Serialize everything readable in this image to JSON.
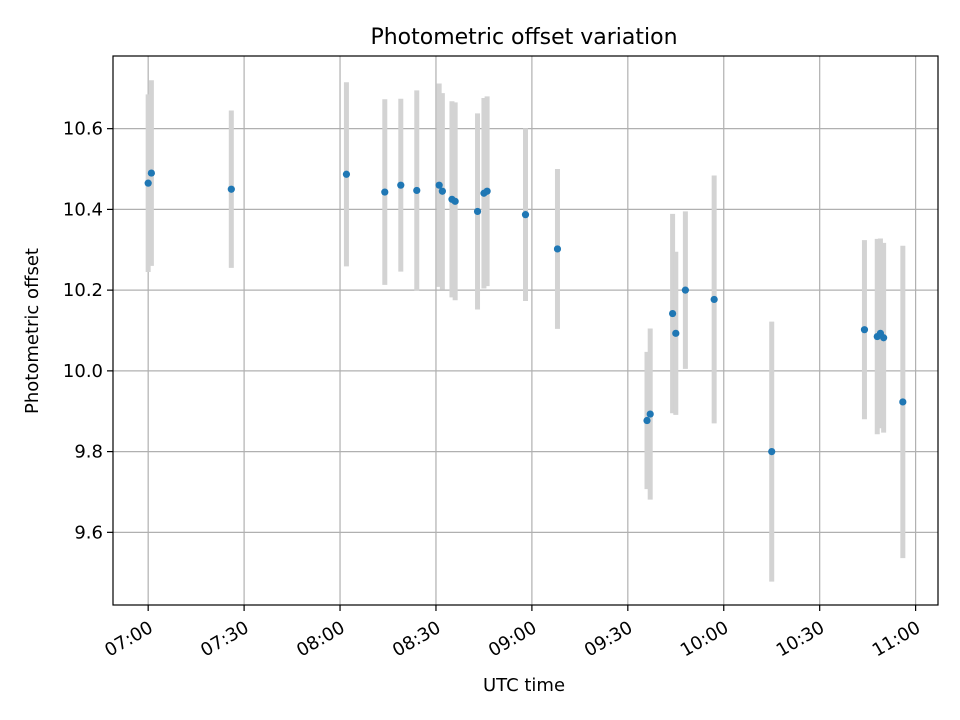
{
  "chart_data": {
    "type": "scatter",
    "title": "Photometric offset variation",
    "xlabel": "UTC time",
    "ylabel": "Photometric offset",
    "x_ticks": [
      "07:00",
      "07:30",
      "08:00",
      "08:30",
      "09:00",
      "09:30",
      "10:00",
      "10:30",
      "11:00"
    ],
    "y_ticks": [
      "9.6",
      "9.8",
      "10.0",
      "10.2",
      "10.4",
      "10.6"
    ],
    "xlim": [
      "06:49",
      "11:07"
    ],
    "ylim": [
      9.42,
      10.78
    ],
    "grid": true,
    "colors": {
      "point": "#1f77b4",
      "errorbar": "#d3d3d3",
      "grid": "#b0b0b0"
    },
    "series": [
      {
        "points": [
          {
            "x": "07:00",
            "y": 10.465,
            "err": 0.22
          },
          {
            "x": "07:01",
            "y": 10.49,
            "err": 0.23
          },
          {
            "x": "07:26",
            "y": 10.45,
            "err": 0.195
          },
          {
            "x": "08:02",
            "y": 10.487,
            "err": 0.228
          },
          {
            "x": "08:14",
            "y": 10.443,
            "err": 0.23
          },
          {
            "x": "08:19",
            "y": 10.46,
            "err": 0.214
          },
          {
            "x": "08:24",
            "y": 10.447,
            "err": 0.248
          },
          {
            "x": "08:31",
            "y": 10.46,
            "err": 0.252
          },
          {
            "x": "08:32",
            "y": 10.445,
            "err": 0.243
          },
          {
            "x": "08:35",
            "y": 10.425,
            "err": 0.243
          },
          {
            "x": "08:36",
            "y": 10.42,
            "err": 0.245
          },
          {
            "x": "08:43",
            "y": 10.395,
            "err": 0.243
          },
          {
            "x": "08:45",
            "y": 10.44,
            "err": 0.236
          },
          {
            "x": "08:46",
            "y": 10.445,
            "err": 0.235
          },
          {
            "x": "08:58",
            "y": 10.387,
            "err": 0.214
          },
          {
            "x": "09:08",
            "y": 10.302,
            "err": 0.198
          },
          {
            "x": "09:36",
            "y": 9.877,
            "err": 0.17
          },
          {
            "x": "09:37",
            "y": 9.893,
            "err": 0.212
          },
          {
            "x": "09:44",
            "y": 10.142,
            "err": 0.247
          },
          {
            "x": "09:45",
            "y": 10.093,
            "err": 0.202
          },
          {
            "x": "09:48",
            "y": 10.2,
            "err": 0.195
          },
          {
            "x": "09:57",
            "y": 10.177,
            "err": 0.307
          },
          {
            "x": "10:15",
            "y": 9.8,
            "err": 0.322
          },
          {
            "x": "10:44",
            "y": 10.102,
            "err": 0.222
          },
          {
            "x": "10:48",
            "y": 10.085,
            "err": 0.242
          },
          {
            "x": "10:49",
            "y": 10.093,
            "err": 0.235
          },
          {
            "x": "10:50",
            "y": 10.082,
            "err": 0.235
          },
          {
            "x": "10:56",
            "y": 9.923,
            "err": 0.387
          }
        ]
      }
    ]
  }
}
